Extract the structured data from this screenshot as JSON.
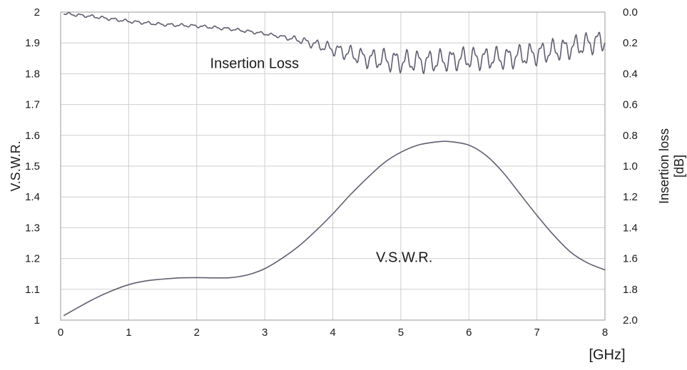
{
  "chart_data": {
    "type": "line",
    "xlabel": "[GHz]",
    "ylabel": "V.S.W.R.",
    "y2label_line1": "Insertion loss",
    "y2label_line2": "[dB]",
    "xlim": [
      0,
      8
    ],
    "ylim": [
      1,
      2
    ],
    "y2lim": [
      0,
      2
    ],
    "y2_inverted": true,
    "x_ticks": [
      "0",
      "1",
      "2",
      "3",
      "4",
      "5",
      "6",
      "7",
      "8"
    ],
    "y_ticks": [
      "1",
      "1.1",
      "1.2",
      "1.3",
      "1.4",
      "1.5",
      "1.6",
      "1.7",
      "1.8",
      "1.9",
      "2"
    ],
    "y2_ticks": [
      "0.0",
      "0.2",
      "0.4",
      "0.6",
      "0.8",
      "1.0",
      "1.2",
      "1.4",
      "1.6",
      "1.8",
      "2.0"
    ],
    "grid": true,
    "series": [
      {
        "name": "V.S.W.R.",
        "axis": "left",
        "color": "#5f5f70",
        "x": [
          0.05,
          0.25,
          0.5,
          0.75,
          1.0,
          1.25,
          1.5,
          1.75,
          2.0,
          2.25,
          2.5,
          2.75,
          3.0,
          3.25,
          3.5,
          3.75,
          4.0,
          4.25,
          4.5,
          4.75,
          5.0,
          5.25,
          5.5,
          5.7,
          6.0,
          6.25,
          6.5,
          6.75,
          7.0,
          7.25,
          7.5,
          7.75,
          8.0
        ],
        "y": [
          1.015,
          1.04,
          1.07,
          1.095,
          1.115,
          1.127,
          1.133,
          1.137,
          1.138,
          1.137,
          1.138,
          1.147,
          1.167,
          1.2,
          1.24,
          1.29,
          1.345,
          1.405,
          1.46,
          1.51,
          1.545,
          1.568,
          1.578,
          1.58,
          1.568,
          1.535,
          1.48,
          1.41,
          1.34,
          1.275,
          1.22,
          1.185,
          1.163
        ]
      },
      {
        "name": "Insertion Loss",
        "axis": "right",
        "color": "#5f5f70",
        "x": [
          0.05,
          0.5,
          1.0,
          1.5,
          2.0,
          2.5,
          3.0,
          3.5,
          4.0,
          4.5,
          5.0,
          5.5,
          6.0,
          6.5,
          7.0,
          7.5,
          8.0
        ],
        "y": [
          0.01,
          0.03,
          0.06,
          0.08,
          0.09,
          0.11,
          0.14,
          0.18,
          0.24,
          0.3,
          0.32,
          0.32,
          0.3,
          0.3,
          0.27,
          0.23,
          0.18
        ]
      }
    ],
    "annotations": [
      {
        "text": "Insertion Loss",
        "x": 2.85,
        "y": 1.835
      },
      {
        "text": "V.S.W.R.",
        "x": 5.05,
        "y": 1.205
      }
    ]
  }
}
